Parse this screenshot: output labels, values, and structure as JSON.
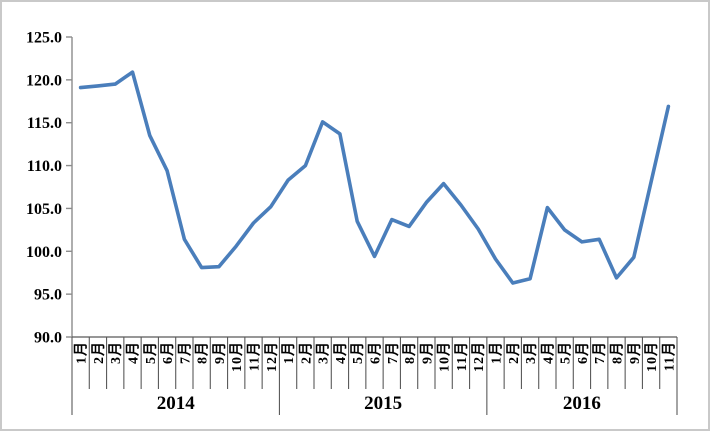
{
  "chart_data": {
    "type": "line",
    "title": "",
    "line_color": "#4A7EBB",
    "axis_color": "#8c8c8c",
    "table_line_color": "#595959",
    "text_color": "#000000",
    "y_axis": {
      "min": 90.0,
      "max": 125.0,
      "step": 5.0,
      "tick_labels": [
        "125.0",
        "120.0",
        "115.0",
        "110.0",
        "105.0",
        "100.0",
        "95.0",
        "90.0"
      ]
    },
    "x_axis": {
      "groups": [
        {
          "year": "2014",
          "months": [
            "1月",
            "2月",
            "3月",
            "4月",
            "5月",
            "6月",
            "7月",
            "8月",
            "9月",
            "10月",
            "11月",
            "12月"
          ],
          "values": [
            119.1,
            119.3,
            119.5,
            120.9,
            113.5,
            109.4,
            101.4,
            98.1,
            98.2,
            100.6,
            103.3,
            105.2
          ]
        },
        {
          "year": "2015",
          "months": [
            "1月",
            "2月",
            "3月",
            "4月",
            "5月",
            "6月",
            "7月",
            "8月",
            "9月",
            "10月",
            "11月",
            "12月"
          ],
          "values": [
            108.3,
            110.0,
            115.1,
            113.7,
            103.5,
            99.4,
            103.7,
            102.9,
            105.7,
            107.9,
            105.4,
            102.6
          ]
        },
        {
          "year": "2016",
          "months": [
            "1月",
            "2月",
            "3月",
            "4月",
            "5月",
            "6月",
            "7月",
            "8月",
            "9月",
            "10月",
            "11月"
          ],
          "values": [
            99.1,
            96.3,
            96.8,
            105.1,
            102.5,
            101.1,
            101.4,
            96.9,
            99.3,
            108.1,
            116.9
          ]
        }
      ]
    },
    "grid": "off",
    "legend": "none"
  }
}
